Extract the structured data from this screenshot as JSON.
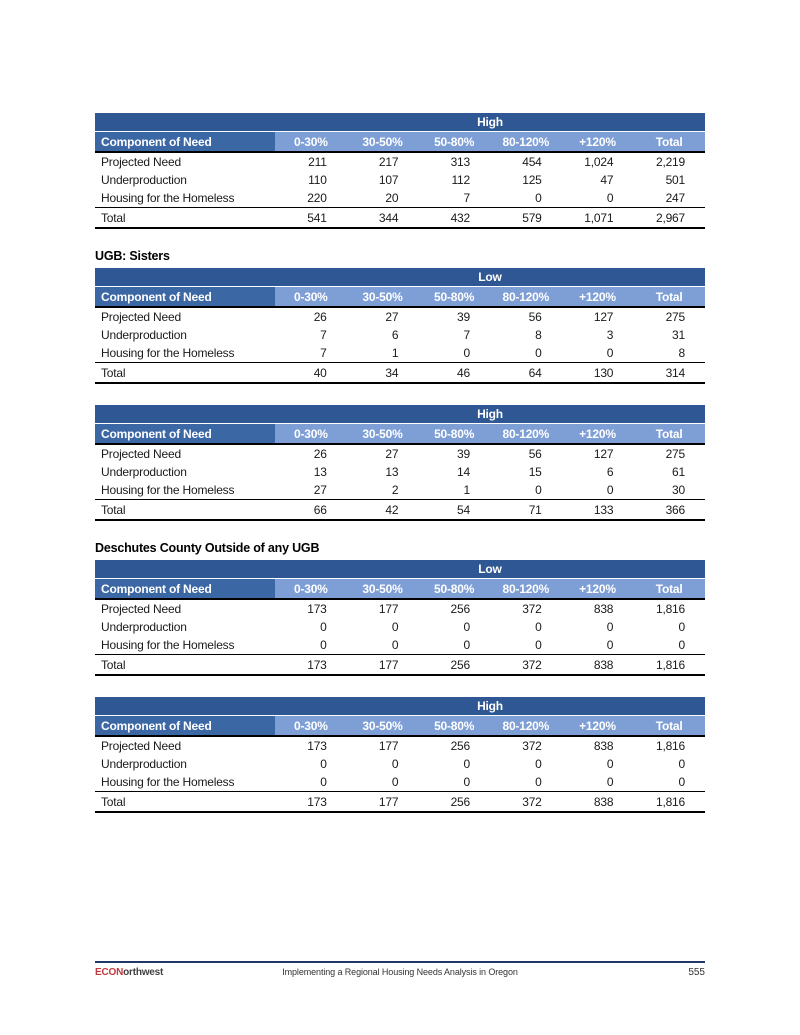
{
  "colors": {
    "band_dark_blue": "#2E5793",
    "row_header_blue": "#3B67A5",
    "column_header_light_blue": "#7E9ED6",
    "footer_rule_navy": "#1F3864",
    "brand_red": "#C0393F"
  },
  "sections": [
    {
      "heading": null,
      "tables": [
        {
          "scenario": "High",
          "row_header": "Component of Need",
          "columns": [
            "0-30%",
            "30-50%",
            "50-80%",
            "80-120%",
            "+120%",
            "Total"
          ],
          "rows": [
            {
              "label": "Projected Need",
              "values": [
                "211",
                "217",
                "313",
                "454",
                "1,024",
                "2,219"
              ]
            },
            {
              "label": "Underproduction",
              "values": [
                "110",
                "107",
                "112",
                "125",
                "47",
                "501"
              ]
            },
            {
              "label": "Housing for the Homeless",
              "values": [
                "220",
                "20",
                "7",
                "0",
                "0",
                "247"
              ]
            }
          ],
          "total": {
            "label": "Total",
            "values": [
              "541",
              "344",
              "432",
              "579",
              "1,071",
              "2,967"
            ]
          }
        }
      ]
    },
    {
      "heading": "UGB: Sisters",
      "tables": [
        {
          "scenario": "Low",
          "row_header": "Component of Need",
          "columns": [
            "0-30%",
            "30-50%",
            "50-80%",
            "80-120%",
            "+120%",
            "Total"
          ],
          "rows": [
            {
              "label": "Projected Need",
              "values": [
                "26",
                "27",
                "39",
                "56",
                "127",
                "275"
              ]
            },
            {
              "label": "Underproduction",
              "values": [
                "7",
                "6",
                "7",
                "8",
                "3",
                "31"
              ]
            },
            {
              "label": "Housing for the Homeless",
              "values": [
                "7",
                "1",
                "0",
                "0",
                "0",
                "8"
              ]
            }
          ],
          "total": {
            "label": "Total",
            "values": [
              "40",
              "34",
              "46",
              "64",
              "130",
              "314"
            ]
          }
        },
        {
          "scenario": "High",
          "row_header": "Component of Need",
          "columns": [
            "0-30%",
            "30-50%",
            "50-80%",
            "80-120%",
            "+120%",
            "Total"
          ],
          "rows": [
            {
              "label": "Projected Need",
              "values": [
                "26",
                "27",
                "39",
                "56",
                "127",
                "275"
              ]
            },
            {
              "label": "Underproduction",
              "values": [
                "13",
                "13",
                "14",
                "15",
                "6",
                "61"
              ]
            },
            {
              "label": "Housing for the Homeless",
              "values": [
                "27",
                "2",
                "1",
                "0",
                "0",
                "30"
              ]
            }
          ],
          "total": {
            "label": "Total",
            "values": [
              "66",
              "42",
              "54",
              "71",
              "133",
              "366"
            ]
          }
        }
      ]
    },
    {
      "heading": "Deschutes County Outside of any UGB",
      "tables": [
        {
          "scenario": "Low",
          "row_header": "Component of Need",
          "columns": [
            "0-30%",
            "30-50%",
            "50-80%",
            "80-120%",
            "+120%",
            "Total"
          ],
          "rows": [
            {
              "label": "Projected Need",
              "values": [
                "173",
                "177",
                "256",
                "372",
                "838",
                "1,816"
              ]
            },
            {
              "label": "Underproduction",
              "values": [
                "0",
                "0",
                "0",
                "0",
                "0",
                "0"
              ]
            },
            {
              "label": "Housing for the Homeless",
              "values": [
                "0",
                "0",
                "0",
                "0",
                "0",
                "0"
              ]
            }
          ],
          "total": {
            "label": "Total",
            "values": [
              "173",
              "177",
              "256",
              "372",
              "838",
              "1,816"
            ]
          }
        },
        {
          "scenario": "High",
          "row_header": "Component of Need",
          "columns": [
            "0-30%",
            "30-50%",
            "50-80%",
            "80-120%",
            "+120%",
            "Total"
          ],
          "rows": [
            {
              "label": "Projected Need",
              "values": [
                "173",
                "177",
                "256",
                "372",
                "838",
                "1,816"
              ]
            },
            {
              "label": "Underproduction",
              "values": [
                "0",
                "0",
                "0",
                "0",
                "0",
                "0"
              ]
            },
            {
              "label": "Housing for the Homeless",
              "values": [
                "0",
                "0",
                "0",
                "0",
                "0",
                "0"
              ]
            }
          ],
          "total": {
            "label": "Total",
            "values": [
              "173",
              "177",
              "256",
              "372",
              "838",
              "1,816"
            ]
          }
        }
      ]
    }
  ],
  "footer": {
    "brand_econ": "ECON",
    "brand_rest": "orthwest",
    "title": "Implementing a Regional Housing Needs Analysis in Oregon",
    "page_number": "555"
  }
}
